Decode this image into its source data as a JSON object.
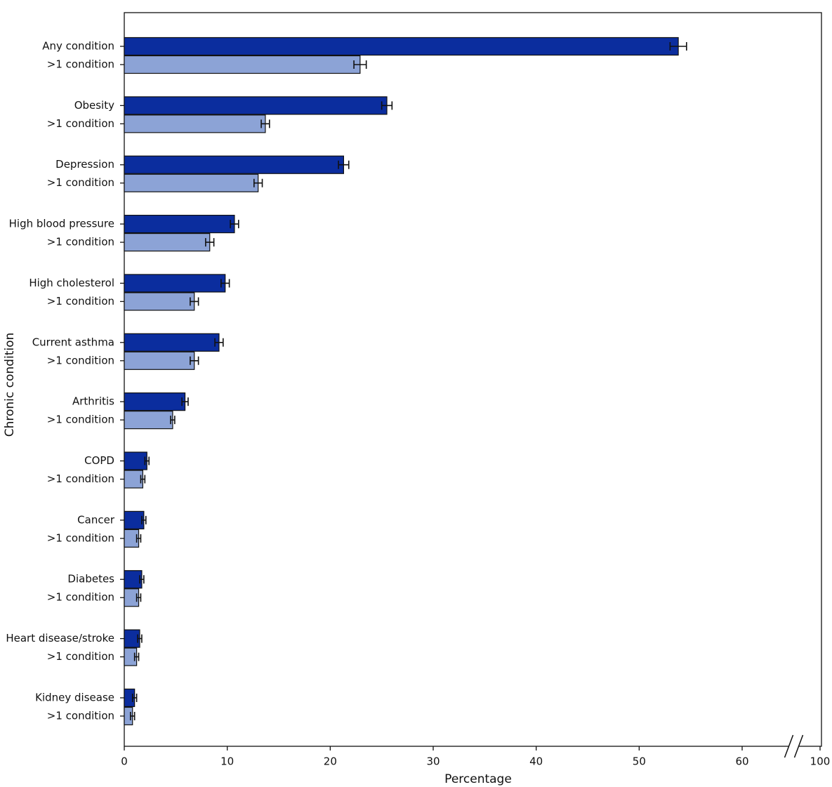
{
  "chart_data": {
    "type": "bar",
    "orientation": "horizontal",
    "x_label": "Percentage",
    "y_label": "Chronic condition",
    "categories": [
      "Any condition",
      "Obesity",
      "Depression",
      "High blood pressure",
      "High cholesterol",
      "Current asthma",
      "Arthritis",
      "COPD",
      "Cancer",
      "Diabetes",
      "Heart disease/stroke",
      "Kidney disease"
    ],
    "series": [
      {
        "color": "#0b2d9e",
        "values": [
          53.8,
          25.5,
          21.3,
          10.7,
          9.8,
          9.2,
          5.9,
          2.2,
          1.9,
          1.7,
          1.5,
          1.0
        ],
        "errors": [
          0.8,
          0.5,
          0.5,
          0.4,
          0.4,
          0.4,
          0.3,
          0.2,
          0.2,
          0.2,
          0.2,
          0.2
        ]
      },
      {
        "name": ">1 condition",
        "color": "#8ca3d6",
        "values": [
          22.9,
          13.7,
          13.0,
          8.3,
          6.8,
          6.8,
          4.7,
          1.8,
          1.4,
          1.4,
          1.2,
          0.8
        ],
        "errors": [
          0.6,
          0.4,
          0.4,
          0.4,
          0.4,
          0.4,
          0.2,
          0.2,
          0.2,
          0.2,
          0.2,
          0.2
        ]
      }
    ],
    "xlim": [
      0,
      100
    ],
    "xticks": [
      0,
      10,
      20,
      30,
      40,
      50,
      60,
      100
    ],
    "axis_break": true,
    "grid": false
  }
}
